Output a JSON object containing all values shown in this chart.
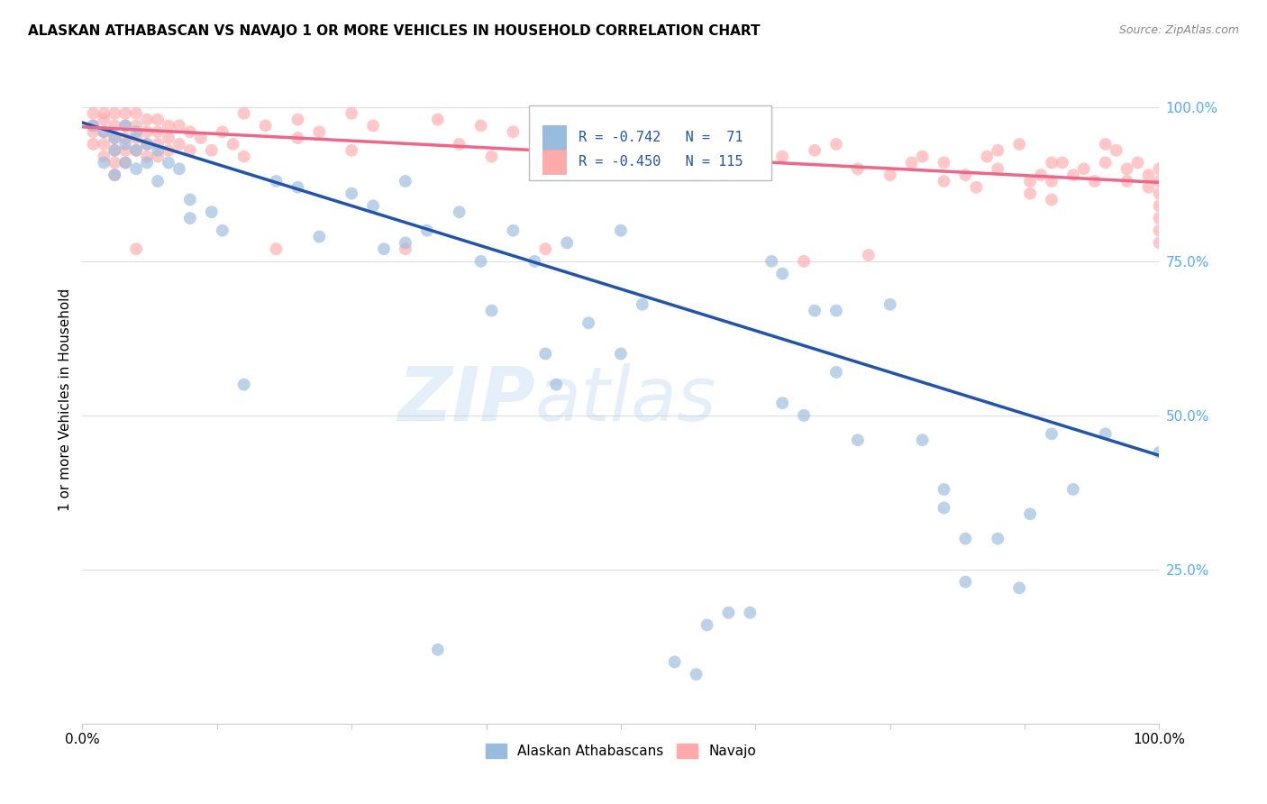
{
  "title": "ALASKAN ATHABASCAN VS NAVAJO 1 OR MORE VEHICLES IN HOUSEHOLD CORRELATION CHART",
  "source": "Source: ZipAtlas.com",
  "ylabel": "1 or more Vehicles in Household",
  "legend_label1": "Alaskan Athabascans",
  "legend_label2": "Navajo",
  "r1": -0.742,
  "n1": 71,
  "r2": -0.45,
  "n2": 115,
  "watermark_zip": "ZIP",
  "watermark_atlas": "atlas",
  "blue_color": "#99BBDD",
  "pink_color": "#FFAAAA",
  "line_blue": "#2255AA",
  "line_pink": "#EE6688",
  "blue_scatter": [
    [
      0.01,
      0.97
    ],
    [
      0.02,
      0.96
    ],
    [
      0.02,
      0.91
    ],
    [
      0.03,
      0.95
    ],
    [
      0.03,
      0.93
    ],
    [
      0.03,
      0.89
    ],
    [
      0.04,
      0.97
    ],
    [
      0.04,
      0.94
    ],
    [
      0.04,
      0.91
    ],
    [
      0.05,
      0.96
    ],
    [
      0.05,
      0.93
    ],
    [
      0.05,
      0.9
    ],
    [
      0.06,
      0.94
    ],
    [
      0.06,
      0.91
    ],
    [
      0.07,
      0.93
    ],
    [
      0.07,
      0.88
    ],
    [
      0.08,
      0.91
    ],
    [
      0.09,
      0.9
    ],
    [
      0.1,
      0.85
    ],
    [
      0.1,
      0.82
    ],
    [
      0.12,
      0.83
    ],
    [
      0.13,
      0.8
    ],
    [
      0.15,
      0.55
    ],
    [
      0.18,
      0.88
    ],
    [
      0.2,
      0.87
    ],
    [
      0.22,
      0.79
    ],
    [
      0.25,
      0.86
    ],
    [
      0.27,
      0.84
    ],
    [
      0.28,
      0.77
    ],
    [
      0.3,
      0.88
    ],
    [
      0.3,
      0.78
    ],
    [
      0.32,
      0.8
    ],
    [
      0.33,
      0.12
    ],
    [
      0.35,
      0.83
    ],
    [
      0.37,
      0.75
    ],
    [
      0.38,
      0.67
    ],
    [
      0.4,
      0.8
    ],
    [
      0.42,
      0.75
    ],
    [
      0.43,
      0.6
    ],
    [
      0.44,
      0.55
    ],
    [
      0.45,
      0.78
    ],
    [
      0.47,
      0.65
    ],
    [
      0.5,
      0.8
    ],
    [
      0.5,
      0.6
    ],
    [
      0.52,
      0.68
    ],
    [
      0.55,
      0.1
    ],
    [
      0.57,
      0.08
    ],
    [
      0.58,
      0.16
    ],
    [
      0.6,
      0.18
    ],
    [
      0.62,
      0.18
    ],
    [
      0.64,
      0.75
    ],
    [
      0.65,
      0.73
    ],
    [
      0.65,
      0.52
    ],
    [
      0.67,
      0.5
    ],
    [
      0.68,
      0.67
    ],
    [
      0.7,
      0.67
    ],
    [
      0.7,
      0.57
    ],
    [
      0.72,
      0.46
    ],
    [
      0.75,
      0.68
    ],
    [
      0.78,
      0.46
    ],
    [
      0.8,
      0.38
    ],
    [
      0.8,
      0.35
    ],
    [
      0.82,
      0.3
    ],
    [
      0.82,
      0.23
    ],
    [
      0.85,
      0.3
    ],
    [
      0.87,
      0.22
    ],
    [
      0.88,
      0.34
    ],
    [
      0.9,
      0.47
    ],
    [
      0.92,
      0.38
    ],
    [
      0.95,
      0.47
    ],
    [
      1.0,
      0.44
    ]
  ],
  "pink_scatter": [
    [
      0.01,
      0.99
    ],
    [
      0.01,
      0.97
    ],
    [
      0.01,
      0.96
    ],
    [
      0.01,
      0.94
    ],
    [
      0.02,
      0.99
    ],
    [
      0.02,
      0.98
    ],
    [
      0.02,
      0.96
    ],
    [
      0.02,
      0.94
    ],
    [
      0.02,
      0.92
    ],
    [
      0.03,
      0.99
    ],
    [
      0.03,
      0.97
    ],
    [
      0.03,
      0.95
    ],
    [
      0.03,
      0.93
    ],
    [
      0.03,
      0.91
    ],
    [
      0.03,
      0.89
    ],
    [
      0.04,
      0.99
    ],
    [
      0.04,
      0.97
    ],
    [
      0.04,
      0.95
    ],
    [
      0.04,
      0.93
    ],
    [
      0.04,
      0.91
    ],
    [
      0.05,
      0.99
    ],
    [
      0.05,
      0.97
    ],
    [
      0.05,
      0.95
    ],
    [
      0.05,
      0.93
    ],
    [
      0.05,
      0.77
    ],
    [
      0.06,
      0.98
    ],
    [
      0.06,
      0.96
    ],
    [
      0.06,
      0.94
    ],
    [
      0.06,
      0.92
    ],
    [
      0.07,
      0.98
    ],
    [
      0.07,
      0.96
    ],
    [
      0.07,
      0.94
    ],
    [
      0.07,
      0.92
    ],
    [
      0.08,
      0.97
    ],
    [
      0.08,
      0.95
    ],
    [
      0.08,
      0.93
    ],
    [
      0.09,
      0.97
    ],
    [
      0.09,
      0.94
    ],
    [
      0.1,
      0.96
    ],
    [
      0.1,
      0.93
    ],
    [
      0.11,
      0.95
    ],
    [
      0.12,
      0.93
    ],
    [
      0.13,
      0.96
    ],
    [
      0.14,
      0.94
    ],
    [
      0.15,
      0.99
    ],
    [
      0.15,
      0.92
    ],
    [
      0.17,
      0.97
    ],
    [
      0.18,
      0.77
    ],
    [
      0.2,
      0.98
    ],
    [
      0.2,
      0.95
    ],
    [
      0.22,
      0.96
    ],
    [
      0.25,
      0.99
    ],
    [
      0.25,
      0.93
    ],
    [
      0.27,
      0.97
    ],
    [
      0.3,
      0.77
    ],
    [
      0.33,
      0.98
    ],
    [
      0.35,
      0.94
    ],
    [
      0.37,
      0.97
    ],
    [
      0.38,
      0.92
    ],
    [
      0.4,
      0.96
    ],
    [
      0.43,
      0.77
    ],
    [
      0.45,
      0.94
    ],
    [
      0.46,
      0.95
    ],
    [
      0.48,
      0.93
    ],
    [
      0.5,
      0.99
    ],
    [
      0.5,
      0.91
    ],
    [
      0.52,
      0.93
    ],
    [
      0.55,
      0.95
    ],
    [
      0.57,
      0.96
    ],
    [
      0.58,
      0.94
    ],
    [
      0.6,
      0.97
    ],
    [
      0.62,
      0.95
    ],
    [
      0.63,
      0.91
    ],
    [
      0.65,
      0.92
    ],
    [
      0.67,
      0.75
    ],
    [
      0.68,
      0.93
    ],
    [
      0.7,
      0.94
    ],
    [
      0.72,
      0.9
    ],
    [
      0.73,
      0.76
    ],
    [
      0.75,
      0.89
    ],
    [
      0.77,
      0.91
    ],
    [
      0.78,
      0.92
    ],
    [
      0.8,
      0.91
    ],
    [
      0.8,
      0.88
    ],
    [
      0.82,
      0.89
    ],
    [
      0.83,
      0.87
    ],
    [
      0.84,
      0.92
    ],
    [
      0.85,
      0.93
    ],
    [
      0.85,
      0.9
    ],
    [
      0.87,
      0.94
    ],
    [
      0.88,
      0.88
    ],
    [
      0.88,
      0.86
    ],
    [
      0.89,
      0.89
    ],
    [
      0.9,
      0.91
    ],
    [
      0.9,
      0.88
    ],
    [
      0.9,
      0.85
    ],
    [
      0.91,
      0.91
    ],
    [
      0.92,
      0.89
    ],
    [
      0.93,
      0.9
    ],
    [
      0.94,
      0.88
    ],
    [
      0.95,
      0.94
    ],
    [
      0.95,
      0.91
    ],
    [
      0.96,
      0.93
    ],
    [
      0.97,
      0.9
    ],
    [
      0.97,
      0.88
    ],
    [
      0.98,
      0.91
    ],
    [
      0.99,
      0.89
    ],
    [
      0.99,
      0.87
    ],
    [
      1.0,
      0.9
    ],
    [
      1.0,
      0.88
    ],
    [
      1.0,
      0.86
    ],
    [
      1.0,
      0.84
    ],
    [
      1.0,
      0.82
    ],
    [
      1.0,
      0.8
    ],
    [
      1.0,
      0.78
    ]
  ],
  "blue_line": [
    [
      0.0,
      0.975
    ],
    [
      1.0,
      0.435
    ]
  ],
  "pink_line": [
    [
      0.0,
      0.968
    ],
    [
      1.0,
      0.878
    ]
  ],
  "xlim": [
    0.0,
    1.0
  ],
  "ylim": [
    0.0,
    1.05
  ],
  "yticks": [
    0.25,
    0.5,
    0.75,
    1.0
  ],
  "ytick_labels": [
    "25.0%",
    "50.0%",
    "75.0%",
    "100.0%"
  ],
  "xtick_positions": [
    0.0,
    0.125,
    0.25,
    0.375,
    0.5,
    0.625,
    0.75,
    0.875,
    1.0
  ],
  "background_color": "#ffffff",
  "grid_color": "#DDDDDD",
  "title_fontsize": 11,
  "axis_label_fontsize": 11,
  "tick_fontsize": 11,
  "legend_fontsize": 11,
  "scatter_size": 100,
  "scatter_alpha": 0.65,
  "right_tick_color": "#55AAFF"
}
